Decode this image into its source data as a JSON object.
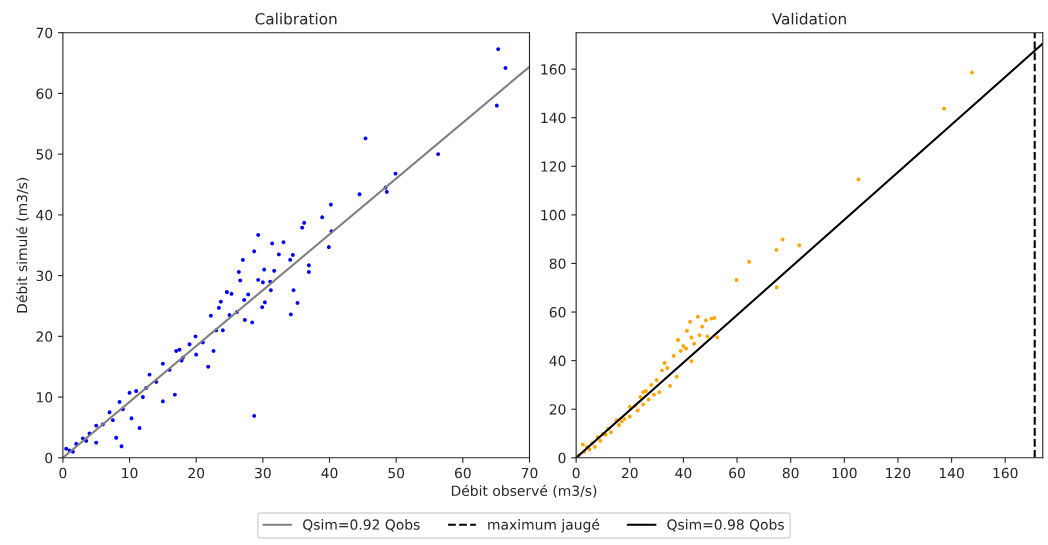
{
  "chart_data": [
    {
      "type": "scatter",
      "title": "Calibration",
      "xlabel": "Débit observé (m3/s)",
      "ylabel": "Débit simulé (m3/s)",
      "xlim": [
        0,
        70
      ],
      "ylim": [
        0,
        70
      ],
      "xticks": [
        0,
        10,
        20,
        30,
        40,
        50,
        60,
        70
      ],
      "yticks": [
        0,
        10,
        20,
        30,
        40,
        50,
        60,
        70
      ],
      "legend": "bottom",
      "series": [
        {
          "marker": "circle",
          "color": "#0000ff",
          "x": [
            65.3,
            66.4,
            65.1,
            45.4,
            56.3,
            49.9,
            48.4,
            48.6,
            44.5,
            40.2,
            38.9,
            36.2,
            35.9,
            40.3,
            39.9,
            29.3,
            28.7,
            31.4,
            33.1,
            32.4,
            34.5,
            34.1,
            27,
            26.4,
            26.6,
            30.2,
            31.7,
            29.3,
            30,
            36.9,
            36.9,
            31.1,
            31.2,
            30.3,
            29.9,
            35.2,
            34.6,
            34.2,
            28.7,
            27.2,
            27.8,
            28.4,
            27.3,
            24.6,
            25.3,
            23.7,
            23.4,
            26.1,
            22.2,
            24,
            22.6,
            21.8,
            19.9,
            17,
            17.8,
            16.8,
            15,
            11.5,
            8.8,
            8,
            10.3,
            5,
            20,
            19,
            15,
            12,
            10,
            13,
            9,
            7,
            6,
            5,
            4,
            3,
            2,
            1,
            0.5,
            1.5,
            11,
            14,
            16,
            18,
            21,
            23,
            25,
            3.5,
            7.5,
            8.5,
            12.5,
            17.5
          ],
          "values": [
            67.3,
            64.2,
            58,
            52.6,
            50,
            46.8,
            44.5,
            43.8,
            43.4,
            41.7,
            39.6,
            38.7,
            37.9,
            37.3,
            34.7,
            36.7,
            34,
            35.3,
            35.5,
            33.5,
            33.4,
            32.6,
            32.6,
            30.6,
            29.2,
            31,
            30.8,
            29.3,
            28.9,
            31.7,
            30.6,
            29,
            27.6,
            25.6,
            24.8,
            25.5,
            27.6,
            23.6,
            6.9,
            26,
            26.9,
            22.3,
            22.7,
            27.3,
            27,
            25.7,
            24.7,
            24,
            23.4,
            21,
            17.6,
            15,
            20,
            17.6,
            16,
            10.4,
            9.3,
            4.9,
            1.9,
            3.3,
            6.5,
            2.5,
            17,
            18.7,
            15.5,
            10,
            10.7,
            13.7,
            8,
            7.5,
            5.5,
            5.3,
            4,
            3.2,
            2.3,
            1.2,
            1.5,
            1,
            11,
            12.5,
            14.5,
            16.5,
            19,
            21,
            23.5,
            2.8,
            6.2,
            9.2,
            11.5,
            17.8
          ]
        },
        {
          "type": "line",
          "name": "Qsim=0.92 Qobs",
          "color": "#808080",
          "x": [
            0,
            70
          ],
          "values": [
            0,
            64.4
          ]
        }
      ]
    },
    {
      "type": "scatter",
      "title": "Validation",
      "xlim": [
        0,
        174
      ],
      "ylim": [
        0,
        175
      ],
      "xticks": [
        0,
        20,
        40,
        60,
        80,
        100,
        120,
        140,
        160
      ],
      "yticks": [
        0,
        20,
        40,
        60,
        80,
        100,
        120,
        140,
        160
      ],
      "legend": "bottom",
      "ref_lines": [
        {
          "axis": "x",
          "value": 171,
          "label": "maximum jaugé",
          "color": "#000000",
          "line_style": "dashed"
        }
      ],
      "series": [
        {
          "marker": "circle",
          "color": "#ffa500",
          "x": [
            147.6,
            137.2,
            105.3,
            77,
            74.7,
            83.2,
            64.5,
            59.8,
            74.8,
            52.6,
            51.5,
            50.4,
            48.4,
            45.4,
            42.5,
            41.3,
            43,
            46,
            49,
            43,
            40,
            41,
            38,
            37.5,
            35,
            36.4,
            33,
            32,
            30,
            31,
            28,
            26,
            27,
            24,
            22,
            23,
            20,
            18,
            20,
            15,
            16,
            12,
            13,
            10,
            8,
            9,
            6,
            7,
            4,
            2.5,
            3,
            1,
            5,
            25,
            29,
            34,
            39,
            44,
            47,
            25,
            17,
            11
          ],
          "values": [
            158.6,
            143.8,
            114.6,
            89.9,
            85.6,
            87.5,
            80.7,
            73.2,
            70.2,
            49.6,
            57.6,
            57.3,
            56.6,
            58.1,
            56,
            52.3,
            49.5,
            50.5,
            50,
            39.8,
            46,
            45,
            48.5,
            33.4,
            29.6,
            42,
            39,
            36,
            32,
            27,
            30,
            27.5,
            24,
            25,
            21.5,
            19.5,
            21,
            16,
            17,
            15.5,
            13.5,
            12,
            10.5,
            9.8,
            8.5,
            7,
            6,
            4.5,
            4.5,
            5.5,
            2.5,
            1,
            3.5,
            22,
            26,
            37,
            44,
            47,
            54,
            27,
            15,
            9.5
          ]
        },
        {
          "type": "line",
          "name": "Qsim=0.98 Qobs",
          "color": "#000000",
          "x": [
            0,
            174
          ],
          "values": [
            0,
            170.5
          ]
        }
      ]
    }
  ]
}
